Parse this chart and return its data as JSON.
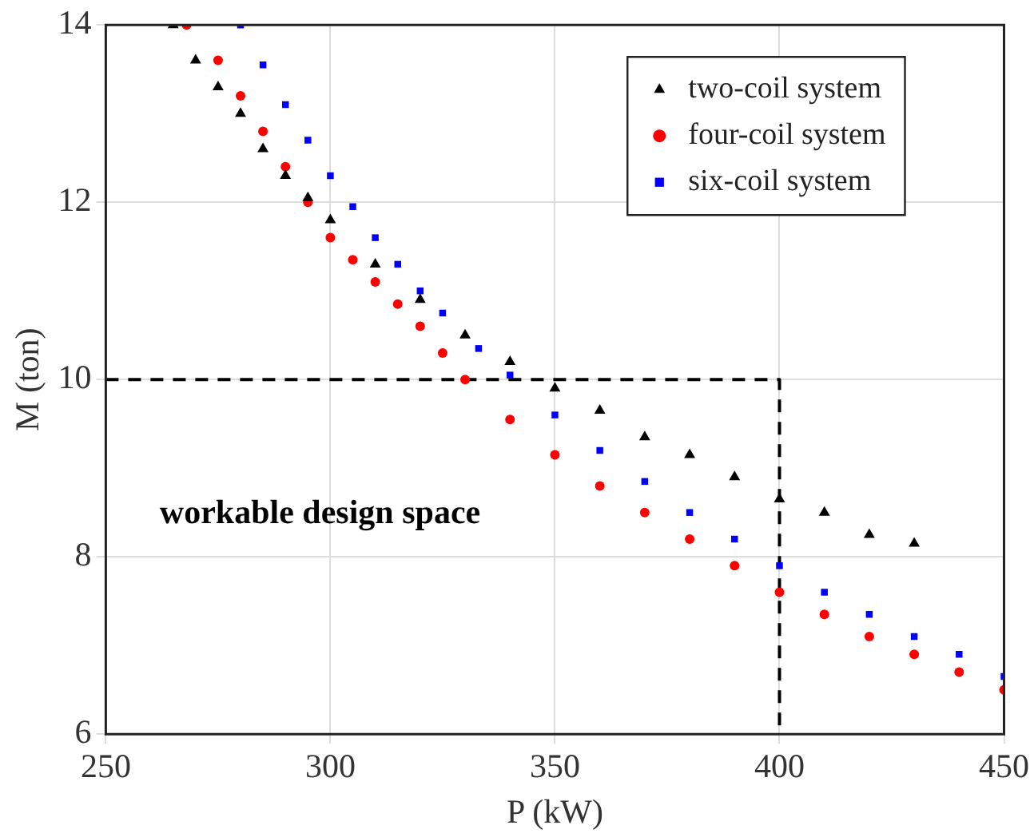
{
  "chart_data": {
    "type": "scatter",
    "xlabel": "P (kW)",
    "ylabel": "M (ton)",
    "xlim": [
      250,
      450
    ],
    "xticks": [
      250,
      300,
      350,
      400,
      450
    ],
    "ylim": [
      6,
      14
    ],
    "yticks": [
      6,
      8,
      10,
      12,
      14
    ],
    "grid": true,
    "legend": "top right",
    "annotations": [
      "workable design space"
    ],
    "series": [
      {
        "name": "two-coil system",
        "color": "#000000",
        "marker": "triangle",
        "x": [
          265,
          270,
          275,
          280,
          285,
          290,
          295,
          300,
          310,
          320,
          330,
          340,
          350,
          360,
          370,
          380,
          390,
          400,
          410,
          420,
          430
        ],
        "values": [
          14,
          13.6,
          13.3,
          13.0,
          12.6,
          12.3,
          12.05,
          11.8,
          11.3,
          10.9,
          10.5,
          10.2,
          9.9,
          9.65,
          9.35,
          9.15,
          8.9,
          8.65,
          8.5,
          8.25,
          8.15
        ]
      },
      {
        "name": "four-coil system",
        "color": "#ff0000",
        "marker": "circle",
        "x": [
          268,
          275,
          280,
          285,
          290,
          295,
          300,
          305,
          310,
          315,
          320,
          325,
          330,
          340,
          350,
          360,
          370,
          380,
          390,
          400,
          410,
          420,
          430,
          440,
          450
        ],
        "values": [
          14,
          13.6,
          13.2,
          12.8,
          12.4,
          12.0,
          11.6,
          11.35,
          11.1,
          10.85,
          10.6,
          10.3,
          10.0,
          9.55,
          9.15,
          8.8,
          8.5,
          8.2,
          7.9,
          7.6,
          7.35,
          7.1,
          6.9,
          6.7,
          6.5
        ]
      },
      {
        "name": "six-coil system",
        "color": "#0000ff",
        "marker": "square",
        "x": [
          280,
          285,
          290,
          295,
          300,
          305,
          310,
          315,
          320,
          325,
          333,
          340,
          350,
          360,
          370,
          380,
          390,
          400,
          410,
          420,
          430,
          440,
          450
        ],
        "values": [
          14,
          13.55,
          13.1,
          12.7,
          12.3,
          11.95,
          11.6,
          11.3,
          11.0,
          10.75,
          10.35,
          10.05,
          9.6,
          9.2,
          8.85,
          8.5,
          8.2,
          7.9,
          7.6,
          7.35,
          7.1,
          6.9,
          6.65
        ]
      },
      {
        "type": "line",
        "color": "#000000",
        "marker": "none",
        "line_style": "dashed",
        "x": [
          250,
          400,
          400
        ],
        "values": [
          10,
          10,
          6
        ]
      }
    ]
  }
}
